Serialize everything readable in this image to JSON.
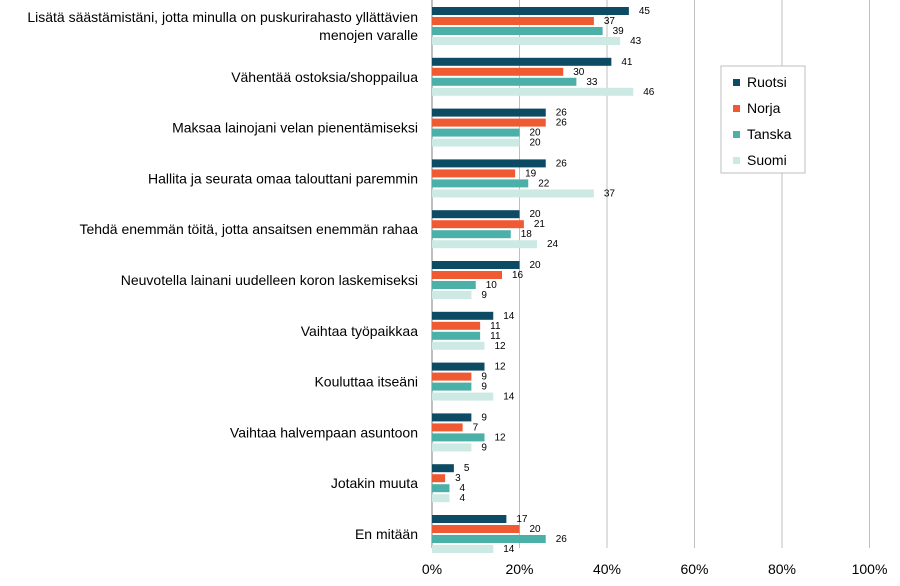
{
  "chart_data": {
    "type": "bar",
    "orientation": "horizontal",
    "categories": [
      [
        "Lisätä säästämistäni, jotta minulla on puskurirahasto yllättävien",
        "menojen varalle"
      ],
      [
        "Vähentää ostoksia/shoppailua"
      ],
      [
        "Maksaa lainojani velan pienentämiseksi"
      ],
      [
        "Hallita ja seurata omaa talouttani paremmin"
      ],
      [
        "Tehdä enemmän töitä, jotta ansaitsen enemmän rahaa"
      ],
      [
        "Neuvotella lainani uudelleen koron laskemiseksi"
      ],
      [
        "Vaihtaa työpaikkaa"
      ],
      [
        "Kouluttaa itseäni"
      ],
      [
        "Vaihtaa halvempaan asuntoon"
      ],
      [
        "Jotakin muuta"
      ],
      [
        "En mitään"
      ]
    ],
    "series": [
      {
        "name": "Ruotsi",
        "color": "#0d4a63",
        "values": [
          45,
          41,
          26,
          26,
          20,
          20,
          14,
          12,
          9,
          5,
          17
        ]
      },
      {
        "name": "Norja",
        "color": "#f05a32",
        "values": [
          37,
          30,
          26,
          19,
          21,
          16,
          11,
          9,
          7,
          3,
          20
        ]
      },
      {
        "name": "Tanska",
        "color": "#4bb0a8",
        "values": [
          39,
          33,
          20,
          22,
          18,
          10,
          11,
          9,
          12,
          4,
          26
        ]
      },
      {
        "name": "Suomi",
        "color": "#cde9e4",
        "values": [
          43,
          46,
          20,
          37,
          24,
          9,
          12,
          14,
          9,
          4,
          14
        ]
      }
    ],
    "xlim": [
      0,
      100
    ],
    "xticks": [
      0,
      20,
      40,
      60,
      80,
      100
    ],
    "tick_suffix": "%",
    "grid": "vertical",
    "legend_position": "top-right"
  }
}
